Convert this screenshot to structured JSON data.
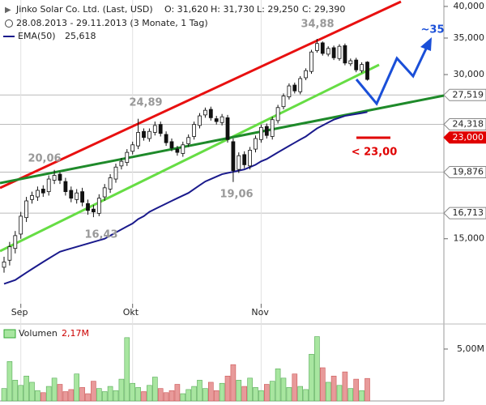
{
  "chart_data": {
    "type": "candlestick",
    "header": {
      "title": "Jinko Solar Co. Ltd. (Last, USD)",
      "ohlc": [
        "O: 31,620",
        "H: 31,730",
        "L: 29,250",
        "C: 29,390"
      ],
      "period": "28.08.2013 - 29.11.2013 (3 Monate, 1 Tag)"
    },
    "categories": [
      null,
      null,
      null,
      "Sep",
      null,
      null,
      null,
      null,
      null,
      null,
      null,
      null,
      null,
      null,
      null,
      null,
      null,
      null,
      null,
      null,
      null,
      null,
      null,
      "Okt",
      null,
      null,
      null,
      null,
      null,
      null,
      null,
      null,
      null,
      null,
      null,
      null,
      null,
      null,
      null,
      null,
      null,
      null,
      null,
      null,
      null,
      null,
      "Nov",
      null,
      null,
      null,
      null,
      null,
      null,
      null,
      null,
      null,
      null,
      null,
      null,
      null,
      null,
      null,
      null,
      null,
      null,
      null
    ],
    "open": [
      13.3,
      13.7,
      14.4,
      15.3,
      16.4,
      17.7,
      17.9,
      18.5,
      18.3,
      19.2,
      19.7,
      19.1,
      18.4,
      17.7,
      18.3,
      17.4,
      17.0,
      16.7,
      17.9,
      18.5,
      19.3,
      20.4,
      20.7,
      21.7,
      22.2,
      23.6,
      22.9,
      23.5,
      24.3,
      23.3,
      22.6,
      21.9,
      21.5,
      22.4,
      23.1,
      24.2,
      25.3,
      25.9,
      24.9,
      24.5,
      25.0,
      22.6,
      20.1,
      21.4,
      20.4,
      21.9,
      22.8,
      24.1,
      23.1,
      24.7,
      26.2,
      27.3,
      28.7,
      27.9,
      29.6,
      30.4,
      33.2,
      34.3,
      32.7,
      33.6,
      32.1,
      33.9,
      31.4,
      31.9,
      30.5,
      31.62
    ],
    "high": [
      13.9,
      14.8,
      15.5,
      16.8,
      17.9,
      18.3,
      18.7,
      18.8,
      19.6,
      20.06,
      19.9,
      19.4,
      18.7,
      18.5,
      18.6,
      17.7,
      17.3,
      18.1,
      18.9,
      19.7,
      20.6,
      21.1,
      21.9,
      22.6,
      24.89,
      23.9,
      23.9,
      24.6,
      24.6,
      23.6,
      22.9,
      22.2,
      22.6,
      23.3,
      24.6,
      25.5,
      26.1,
      26.2,
      25.2,
      25.4,
      25.3,
      22.9,
      21.6,
      21.7,
      22.1,
      23.2,
      24.3,
      24.4,
      25.1,
      26.4,
      27.7,
      28.9,
      29.0,
      29.8,
      30.8,
      33.3,
      34.88,
      34.5,
      33.8,
      33.9,
      34.1,
      34.2,
      32.1,
      32.2,
      31.6,
      31.73
    ],
    "low": [
      13.0,
      13.4,
      14.1,
      15.0,
      16.1,
      17.4,
      17.6,
      17.9,
      18.0,
      18.9,
      18.9,
      18.0,
      17.5,
      17.4,
      17.2,
      16.6,
      16.43,
      16.5,
      17.6,
      18.2,
      19.0,
      20.1,
      20.4,
      21.4,
      21.9,
      22.7,
      22.6,
      23.2,
      23.1,
      22.2,
      21.7,
      21.3,
      21.2,
      22.1,
      22.8,
      23.9,
      25.0,
      24.7,
      24.3,
      24.2,
      22.5,
      19.06,
      19.8,
      20.2,
      20.1,
      21.6,
      22.5,
      22.9,
      22.8,
      24.4,
      25.9,
      27.0,
      27.7,
      27.6,
      29.3,
      30.1,
      32.9,
      32.5,
      32.4,
      31.9,
      31.8,
      31.2,
      31.1,
      30.3,
      30.2,
      29.25
    ],
    "close": [
      13.6,
      14.5,
      15.2,
      16.5,
      17.6,
      18.0,
      18.4,
      18.2,
      19.3,
      19.6,
      19.2,
      18.3,
      17.8,
      18.2,
      17.5,
      16.9,
      16.8,
      17.8,
      18.6,
      19.4,
      20.3,
      20.8,
      21.6,
      22.3,
      23.5,
      23.0,
      23.6,
      24.2,
      23.4,
      22.5,
      22.0,
      21.6,
      22.3,
      23.0,
      24.3,
      25.2,
      25.8,
      25.0,
      24.6,
      25.1,
      22.8,
      20.0,
      21.3,
      20.5,
      21.8,
      22.9,
      24.0,
      23.2,
      24.8,
      26.1,
      27.4,
      28.6,
      28.0,
      29.5,
      30.5,
      33.0,
      34.2,
      32.8,
      33.5,
      32.2,
      33.8,
      31.5,
      31.8,
      30.6,
      31.3,
      29.39
    ],
    "ema": {
      "name": "EMA(50)",
      "color": "#1a1a8c",
      "value_label": "25,618",
      "values": [
        12.4,
        12.5,
        12.6,
        12.8,
        13.0,
        13.2,
        13.4,
        13.6,
        13.8,
        14.0,
        14.2,
        14.3,
        14.4,
        14.5,
        14.6,
        14.7,
        14.8,
        14.9,
        15.0,
        15.2,
        15.4,
        15.6,
        15.8,
        16.0,
        16.3,
        16.5,
        16.8,
        17.0,
        17.2,
        17.4,
        17.6,
        17.8,
        18.0,
        18.2,
        18.5,
        18.8,
        19.1,
        19.3,
        19.5,
        19.7,
        19.8,
        19.9,
        20.0,
        20.1,
        20.3,
        20.5,
        20.8,
        21.0,
        21.3,
        21.6,
        21.9,
        22.2,
        22.5,
        22.8,
        23.1,
        23.5,
        23.9,
        24.2,
        24.5,
        24.8,
        25.0,
        25.2,
        25.3,
        25.4,
        25.5,
        25.618
      ]
    },
    "ylim": [
      11.4,
      41.1
    ],
    "log_scale": true,
    "yticks": [
      {
        "value": 40,
        "label": "40,000"
      },
      {
        "value": 35,
        "label": "35,000"
      },
      {
        "value": 30,
        "label": "30,000"
      },
      {
        "value": 15,
        "label": "15,000"
      }
    ],
    "levels": [
      {
        "value": 27.519,
        "label": "27,519",
        "color": "#888888"
      },
      {
        "value": 24.318,
        "label": "24,318",
        "color": "#888888"
      },
      {
        "value": 23,
        "label": "23,000",
        "color": "#e00000"
      },
      {
        "value": 19.876,
        "label": "19,876",
        "color": "#888888"
      },
      {
        "value": 16.713,
        "label": "16,713",
        "color": "#888888"
      }
    ],
    "annotations": [
      {
        "text": "20,06",
        "color": "#999999"
      },
      {
        "text": "24,89",
        "color": "#999999"
      },
      {
        "text": "16,43",
        "color": "#999999"
      },
      {
        "text": "19,06",
        "color": "#999999"
      },
      {
        "text": "34,88",
        "color": "#999999"
      },
      {
        "text": "~35",
        "color": "#1a4fd8"
      },
      {
        "text": "< 23,00",
        "color": "#e00000"
      }
    ],
    "volume": {
      "name": "Volumen",
      "value_label": "2,17M",
      "up_color": "#a8e6a0",
      "down_color": "#e89a9a",
      "ylim": [
        0,
        6.4
      ],
      "yticks": [
        {
          "value": 5,
          "label": "5,00M"
        }
      ],
      "values": [
        1.2,
        3.8,
        2.0,
        1.5,
        2.4,
        1.8,
        1.0,
        0.8,
        1.4,
        2.2,
        1.6,
        0.9,
        1.1,
        2.6,
        1.3,
        0.7,
        1.9,
        1.2,
        0.9,
        1.4,
        1.0,
        2.1,
        6.1,
        1.7,
        1.3,
        0.9,
        1.5,
        2.3,
        1.2,
        0.8,
        1.0,
        1.6,
        0.7,
        1.1,
        1.4,
        2.0,
        1.2,
        1.8,
        1.0,
        1.7,
        2.4,
        3.5,
        2.0,
        1.4,
        2.2,
        1.3,
        1.0,
        1.6,
        1.9,
        3.1,
        2.2,
        1.3,
        2.6,
        1.4,
        1.1,
        4.5,
        6.2,
        3.2,
        1.8,
        2.4,
        1.5,
        2.8,
        1.2,
        2.1,
        1.0,
        2.17
      ]
    }
  }
}
